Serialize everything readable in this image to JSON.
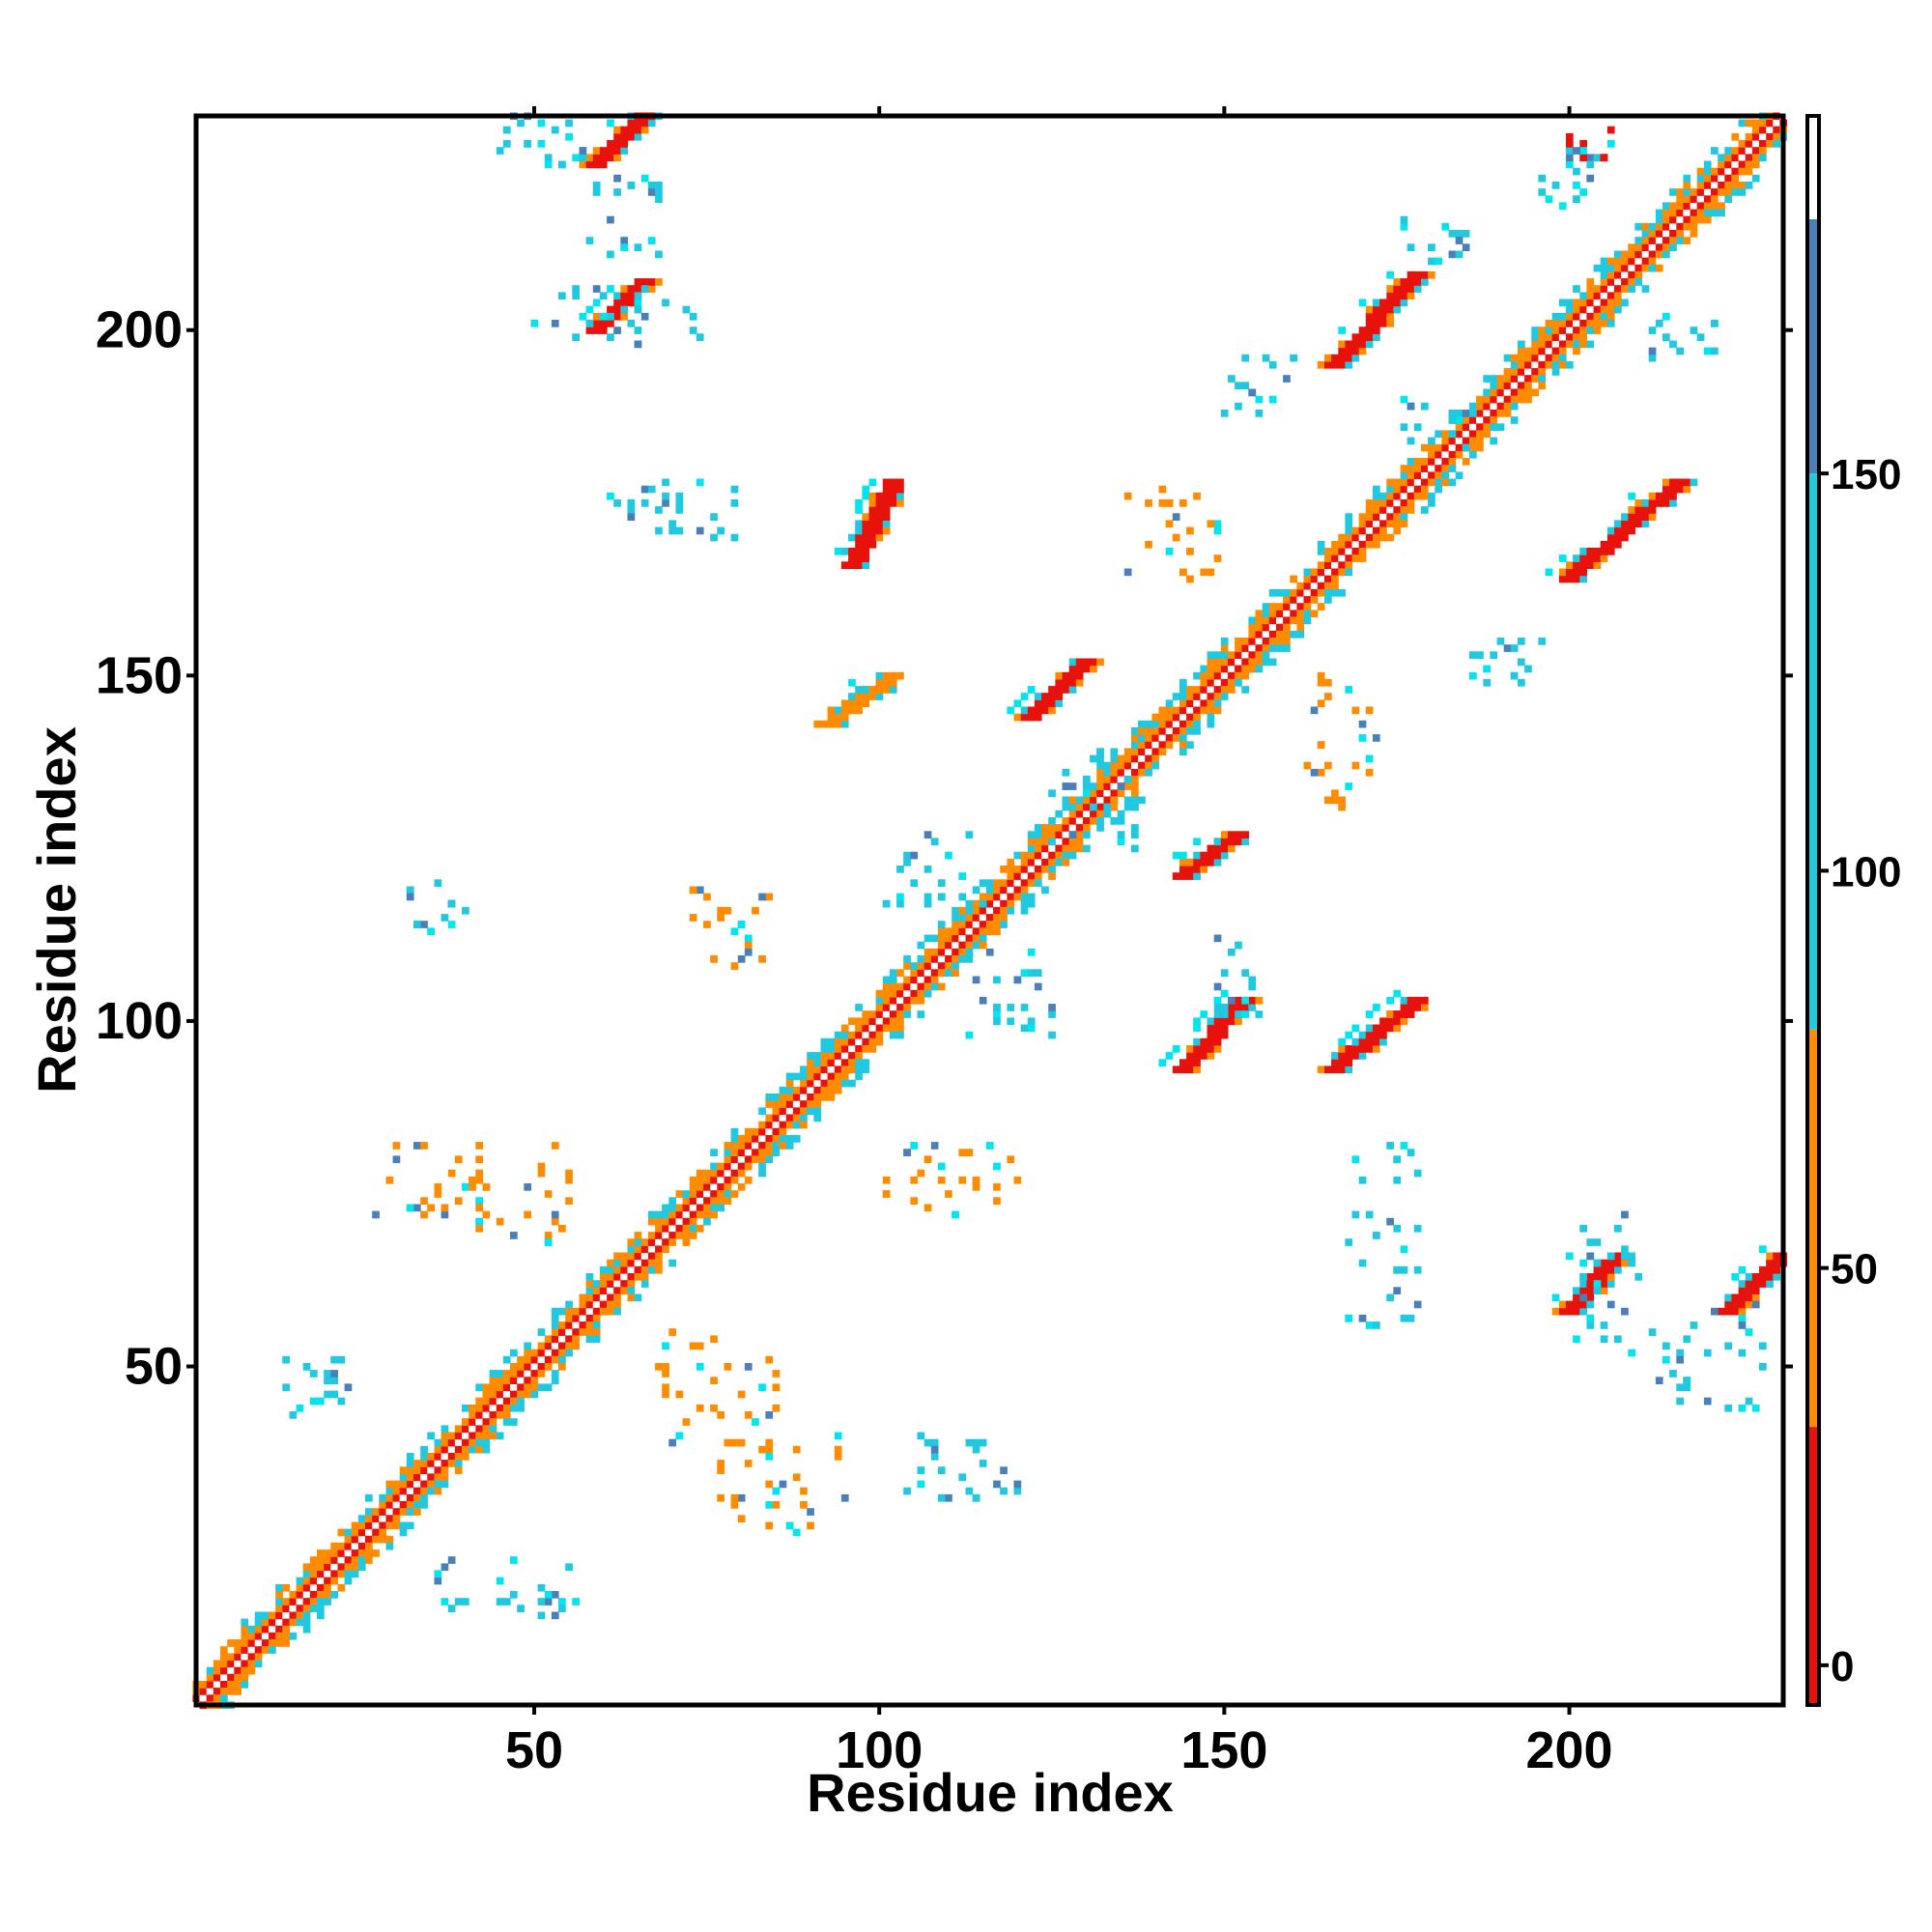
{
  "chart_data": {
    "type": "heatmap",
    "title": "",
    "xlabel": "Residue index",
    "ylabel": "Residue index",
    "xlim": [
      1,
      231
    ],
    "ylim": [
      1,
      231
    ],
    "x_ticks": [
      50,
      100,
      150,
      200
    ],
    "y_ticks": [
      50,
      100,
      150,
      200
    ],
    "grid": false,
    "diagonal": {
      "from": 1,
      "to": 231
    },
    "colorbar": {
      "ticks": [
        0,
        50,
        100,
        150
      ],
      "range": [
        -5,
        195
      ],
      "bands": [
        {
          "from": -5,
          "to": 30,
          "color": "#e8120c"
        },
        {
          "from": 30,
          "to": 80,
          "color": "#ff8c00"
        },
        {
          "from": 80,
          "to": 150,
          "color": "#20c8e0"
        },
        {
          "from": 150,
          "to": 182,
          "color": "#4a7fb8"
        },
        {
          "from": 182,
          "to": 195,
          "color": "#ffffff"
        }
      ]
    },
    "colors": {
      "diag_center": "#ffffff",
      "near_diag": "#e8120c",
      "orange": "#ff8c00",
      "cyan": "#20c8e0",
      "light_cyan": "#00e5ee",
      "steel": "#4a7fb8"
    },
    "contact_bands": [
      {
        "x": [
          59,
          66
        ],
        "y": [
          200,
          207
        ],
        "tone": "red"
      },
      {
        "x": [
          96,
          102
        ],
        "y": [
          166,
          178
        ],
        "tone": "red"
      },
      {
        "x": [
          93,
          102
        ],
        "y": [
          143,
          150
        ],
        "tone": "orange"
      },
      {
        "x": [
          122,
          130
        ],
        "y": [
          144,
          152
        ],
        "tone": "red"
      },
      {
        "x": [
          144,
          152
        ],
        "y": [
          121,
          127
        ],
        "tone": "red"
      },
      {
        "x": [
          144,
          153
        ],
        "y": [
          93,
          103
        ],
        "tone": "red"
      },
      {
        "x": [
          166,
          178
        ],
        "y": [
          93,
          103
        ],
        "tone": "red"
      },
      {
        "x": [
          166,
          178
        ],
        "y": [
          195,
          208
        ],
        "tone": "red"
      },
      {
        "x": [
          200,
          207
        ],
        "y": [
          58,
          66
        ],
        "tone": "red"
      },
      {
        "x": [
          200,
          216
        ],
        "y": [
          164,
          178
        ],
        "tone": "red"
      },
      {
        "x": [
          223,
          231
        ],
        "y": [
          58,
          66
        ],
        "tone": "red"
      },
      {
        "x": [
          59,
          66
        ],
        "y": [
          224,
          231
        ],
        "tone": "red"
      }
    ],
    "contact_clusters": [
      {
        "x": [
          44,
          58
        ],
        "y": [
          224,
          231
        ],
        "tone": "cyan"
      },
      {
        "x": [
          58,
          68
        ],
        "y": [
          210,
          222
        ],
        "tone": "cyan"
      },
      {
        "x": [
          50,
          74
        ],
        "y": [
          198,
          206
        ],
        "tone": "cyan"
      },
      {
        "x": [
          60,
          82
        ],
        "y": [
          170,
          178
        ],
        "tone": "cyan"
      },
      {
        "x": [
          30,
          40
        ],
        "y": [
          113,
          120
        ],
        "tone": "cyan"
      },
      {
        "x": [
          14,
          24
        ],
        "y": [
          42,
          52
        ],
        "tone": "cyan"
      },
      {
        "x": [
          36,
          56
        ],
        "y": [
          14,
          22
        ],
        "tone": "cyan"
      },
      {
        "x": [
          103,
          122
        ],
        "y": [
          30,
          40
        ],
        "tone": "cyan"
      },
      {
        "x": [
          76,
          96
        ],
        "y": [
          26,
          40
        ],
        "tone": "orange"
      },
      {
        "x": [
          68,
          86
        ],
        "y": [
          38,
          56
        ],
        "tone": "orange"
      },
      {
        "x": [
          40,
          56
        ],
        "y": [
          68,
          82
        ],
        "tone": "orange"
      },
      {
        "x": [
          26,
          42
        ],
        "y": [
          70,
          82
        ],
        "tone": "orange"
      },
      {
        "x": [
          72,
          84
        ],
        "y": [
          108,
          120
        ],
        "tone": "orange"
      },
      {
        "x": [
          100,
          120
        ],
        "y": [
          72,
          82
        ],
        "tone": "orange"
      },
      {
        "x": [
          100,
          116
        ],
        "y": [
          116,
          128
        ],
        "tone": "cyan"
      },
      {
        "x": [
          112,
          126
        ],
        "y": [
          96,
          112
        ],
        "tone": "cyan"
      },
      {
        "x": [
          148,
          156
        ],
        "y": [
          100,
          112
        ],
        "tone": "cyan"
      },
      {
        "x": [
          168,
          178
        ],
        "y": [
          56,
          82
        ],
        "tone": "cyan"
      },
      {
        "x": [
          200,
          210
        ],
        "y": [
          52,
          74
        ],
        "tone": "cyan"
      },
      {
        "x": [
          212,
          228
        ],
        "y": [
          44,
          60
        ],
        "tone": "cyan"
      },
      {
        "x": [
          186,
          196
        ],
        "y": [
          148,
          156
        ],
        "tone": "cyan"
      },
      {
        "x": [
          176,
          186
        ],
        "y": [
          182,
          190
        ],
        "tone": "cyan"
      },
      {
        "x": [
          150,
          160
        ],
        "y": [
          188,
          196
        ],
        "tone": "cyan"
      },
      {
        "x": [
          196,
          206
        ],
        "y": [
          218,
          226
        ],
        "tone": "cyan"
      },
      {
        "x": [
          212,
          222
        ],
        "y": [
          196,
          202
        ],
        "tone": "cyan"
      },
      {
        "x": [
          162,
          172
        ],
        "y": [
          130,
          150
        ],
        "tone": "orange"
      },
      {
        "x": [
          136,
          150
        ],
        "y": [
          164,
          178
        ],
        "tone": "orange"
      },
      {
        "x": [
          124,
          138
        ],
        "y": [
          125,
          140
        ],
        "tone": "cyan"
      },
      {
        "x": [
          176,
          186
        ],
        "y": [
          210,
          216
        ],
        "tone": "cyan"
      },
      {
        "x": [
          200,
          206
        ],
        "y": [
          225,
          231
        ],
        "tone": "red"
      }
    ]
  }
}
